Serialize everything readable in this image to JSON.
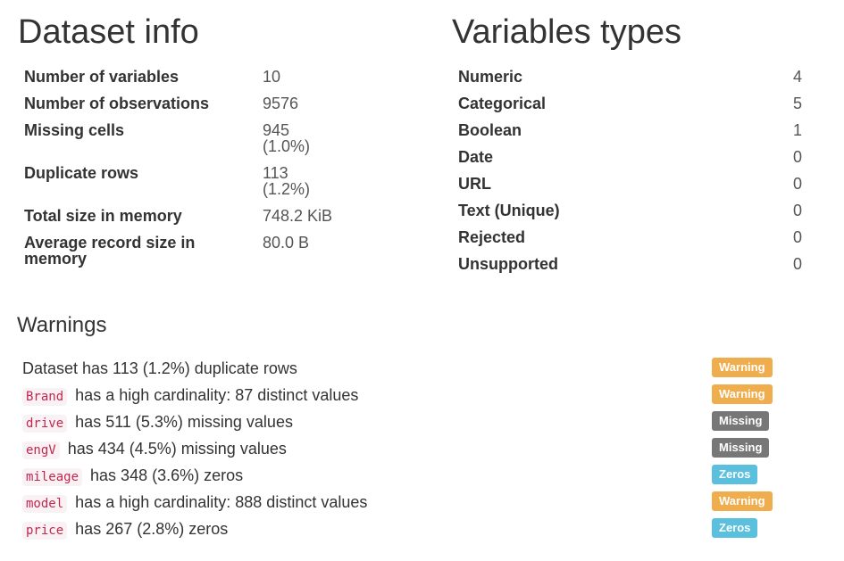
{
  "dataset_info": {
    "title": "Dataset info",
    "rows": [
      {
        "label": "Number of variables",
        "value": "10",
        "sub": ""
      },
      {
        "label": "Number of observations",
        "value": "9576",
        "sub": ""
      },
      {
        "label": "Missing cells",
        "value": "945",
        "sub": "(1.0%)"
      },
      {
        "label": "Duplicate rows",
        "value": "113",
        "sub": "(1.2%)"
      },
      {
        "label": "Total size in memory",
        "value": "748.2 KiB",
        "sub": ""
      },
      {
        "label": "Average record size in memory",
        "value": "80.0 B",
        "sub": ""
      }
    ]
  },
  "variables_types": {
    "title": "Variables types",
    "rows": [
      {
        "label": "Numeric",
        "value": "4"
      },
      {
        "label": "Categorical",
        "value": "5"
      },
      {
        "label": "Boolean",
        "value": "1"
      },
      {
        "label": "Date",
        "value": "0"
      },
      {
        "label": "URL",
        "value": "0"
      },
      {
        "label": "Text (Unique)",
        "value": "0"
      },
      {
        "label": "Rejected",
        "value": "0"
      },
      {
        "label": "Unsupported",
        "value": "0"
      }
    ]
  },
  "warnings": {
    "title": "Warnings",
    "items": [
      {
        "code": "",
        "text": "Dataset has 113 (1.2%) duplicate rows",
        "badge": "Warning",
        "badge_type": "warning"
      },
      {
        "code": "Brand",
        "text": "has a high cardinality: 87 distinct values",
        "badge": "Warning",
        "badge_type": "warning"
      },
      {
        "code": "drive",
        "text": "has 511 (5.3%) missing values",
        "badge": "Missing",
        "badge_type": "missing"
      },
      {
        "code": "engV",
        "text": "has 434 (4.5%) missing values",
        "badge": "Missing",
        "badge_type": "missing"
      },
      {
        "code": "mileage",
        "text": "has 348 (3.6%) zeros",
        "badge": "Zeros",
        "badge_type": "zeros"
      },
      {
        "code": "model",
        "text": "has a high cardinality: 888 distinct values",
        "badge": "Warning",
        "badge_type": "warning"
      },
      {
        "code": "price",
        "text": "has 267 (2.8%) zeros",
        "badge": "Zeros",
        "badge_type": "zeros"
      }
    ]
  },
  "colors": {
    "warning": "#f0ad4e",
    "missing": "#777777",
    "zeros": "#5bc0de",
    "code_text": "#c7254e",
    "code_bg": "#f9f2f4"
  }
}
